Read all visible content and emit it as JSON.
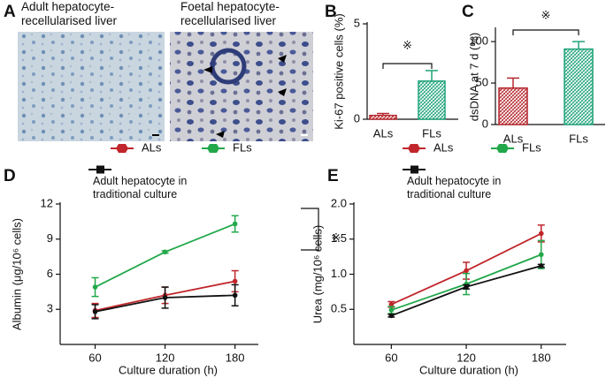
{
  "panel_a": {
    "label": "A",
    "images": [
      {
        "caption": "Adult hepatocyte-recellularised liver"
      },
      {
        "caption": "Foetal hepatocyte-recellularised liver"
      }
    ]
  },
  "chart_data": [
    {
      "type": "bar",
      "panel_label": "B",
      "ylabel": "Ki-67 positive cells (%)",
      "categories": [
        "ALs",
        "FLs"
      ],
      "values": [
        0.2,
        2.0
      ],
      "errors": [
        0.1,
        0.55
      ],
      "colors": [
        "#b5272d",
        "#1fa37a"
      ],
      "ylim": [
        0,
        5
      ],
      "yticks": [
        0,
        5
      ],
      "annotation": "※"
    },
    {
      "type": "bar",
      "panel_label": "C",
      "ylabel": "dsDNA at 7 d (%)",
      "categories": [
        "ALs",
        "FLs"
      ],
      "values": [
        44,
        91
      ],
      "errors": [
        12,
        9
      ],
      "colors": [
        "#b5272d",
        "#1fa37a"
      ],
      "ylim": [
        0,
        115
      ],
      "yticks": [
        0,
        50,
        100
      ],
      "annotation": "※"
    },
    {
      "type": "line",
      "panel_label": "D",
      "xlabel": "Culture duration (h)",
      "ylabel": "Albumin (μg/10⁶ cells)",
      "x": [
        60,
        120,
        180
      ],
      "xlim": [
        30,
        200
      ],
      "xticks": [
        60,
        120,
        180
      ],
      "ylim": [
        0,
        12
      ],
      "yticks": [
        3,
        6,
        9,
        12
      ],
      "series": [
        {
          "name": "ALs",
          "color": "#c0262b",
          "values": [
            2.9,
            4.2,
            5.4
          ],
          "errors": [
            0.6,
            0.7,
            0.9
          ]
        },
        {
          "name": "FLs",
          "color": "#22a84a",
          "values": [
            4.9,
            7.9,
            10.3
          ],
          "errors": [
            0.8,
            0.1,
            0.7
          ]
        },
        {
          "name": "Adult hepatocyte in traditional culture",
          "color": "#111111",
          "values": [
            2.8,
            4.0,
            4.2
          ],
          "errors": [
            0.6,
            0.9,
            0.9
          ]
        }
      ],
      "annotation": "※"
    },
    {
      "type": "line",
      "panel_label": "E",
      "xlabel": "Culture duration (h)",
      "ylabel": "Urea (mg/10⁶ cells)",
      "x": [
        60,
        120,
        180
      ],
      "xlim": [
        30,
        200
      ],
      "xticks": [
        60,
        120,
        180
      ],
      "ylim": [
        0,
        2
      ],
      "yticks": [
        0.5,
        {
          "value": 1,
          "label": "1.0"
        },
        1.5,
        {
          "value": 2,
          "label": "2.0"
        }
      ],
      "series": [
        {
          "name": "ALs",
          "color": "#c0262b",
          "values": [
            0.57,
            1.05,
            1.58
          ],
          "errors": [
            0.04,
            0.12,
            0.12
          ]
        },
        {
          "name": "FLs",
          "color": "#22a84a",
          "values": [
            0.49,
            0.86,
            1.28
          ],
          "errors": [
            0.05,
            0.15,
            0.2
          ]
        },
        {
          "name": "Adult hepatocyte in traditional culture",
          "color": "#111111",
          "values": [
            0.41,
            0.82,
            1.12
          ],
          "errors": [
            0.02,
            0.03,
            0.02
          ]
        }
      ]
    }
  ]
}
